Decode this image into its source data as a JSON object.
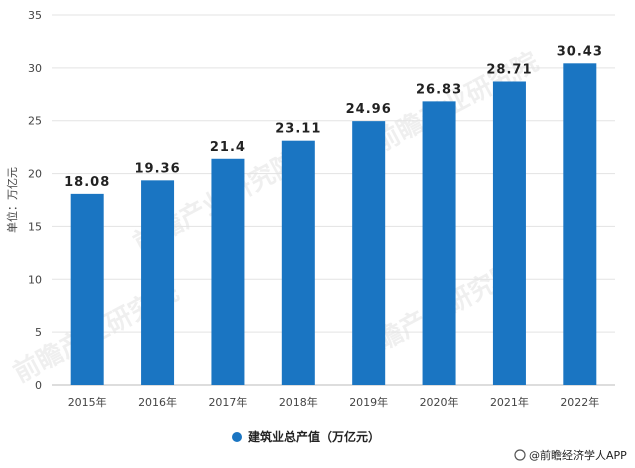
{
  "chart_data": {
    "type": "bar",
    "categories": [
      "2015年",
      "2016年",
      "2017年",
      "2018年",
      "2019年",
      "2020年",
      "2021年",
      "2022年"
    ],
    "values": [
      18.08,
      19.36,
      21.4,
      23.11,
      24.96,
      26.83,
      28.71,
      30.43
    ],
    "data_labels": [
      "18.08",
      "19.36",
      "21.4",
      "23.11",
      "24.96",
      "26.83",
      "28.71",
      "30.43"
    ],
    "ylabel": "单位：万亿元",
    "ylim": [
      0,
      35
    ],
    "yticks": [
      0,
      5,
      10,
      15,
      20,
      25,
      30,
      35
    ],
    "grid": true,
    "legend_position": "bottom",
    "series": [
      {
        "name": "建筑业总产值（万亿元）",
        "color": "#1a75c2"
      }
    ]
  },
  "credit": "@前瞻经济学人APP",
  "watermark": "前瞻产业研究院"
}
